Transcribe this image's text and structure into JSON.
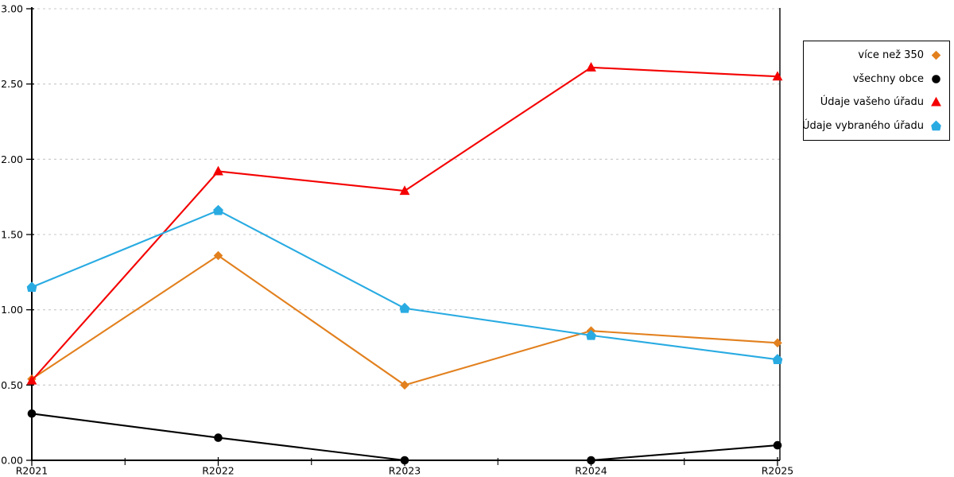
{
  "chart_data": {
    "type": "line",
    "categories": [
      "R2021",
      "R2022",
      "R2023",
      "R2024",
      "R2025"
    ],
    "series": [
      {
        "name": "více než 350",
        "marker": "diamond",
        "color": "#E2801E",
        "values": [
          0.54,
          1.36,
          0.5,
          0.86,
          0.78
        ]
      },
      {
        "name": "všechny obce",
        "marker": "circle",
        "color": "#000000",
        "values": [
          0.31,
          0.15,
          0.0,
          0.0,
          0.1
        ]
      },
      {
        "name": "Údaje vašeho úřadu",
        "marker": "triangle",
        "color": "#F40000",
        "values": [
          0.53,
          1.92,
          1.79,
          2.61,
          2.55
        ]
      },
      {
        "name": "Údaje vybraného úřadu",
        "marker": "pentagon",
        "color": "#29ABE2",
        "values": [
          1.15,
          1.66,
          1.01,
          0.83,
          0.67
        ]
      }
    ],
    "title": "",
    "xlabel": "",
    "ylabel": "",
    "ylim": [
      0,
      3
    ],
    "yticks": [
      0,
      0.5,
      1,
      1.5,
      2,
      2.5,
      3
    ],
    "ytick_labels": [
      "0.00",
      "0.50",
      "1.00",
      "1.50",
      "2.00",
      "2.50",
      "3.00"
    ],
    "grid": "horizontal-dashed",
    "grid_color": "#C8C8C8",
    "axis_color": "#000000",
    "background": "#FFFFFF",
    "legend_position": "right-outside"
  }
}
